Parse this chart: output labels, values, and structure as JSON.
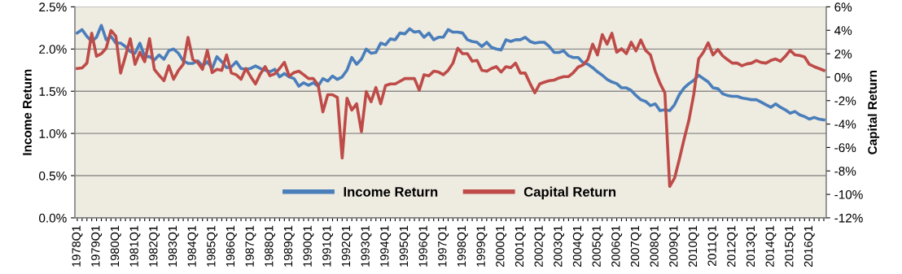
{
  "chart_data": {
    "type": "line",
    "ylabel": "Income Return",
    "y2label": "Capital Return",
    "categories": [
      "1978Q1",
      null,
      null,
      null,
      "1979Q1",
      null,
      null,
      null,
      "1980Q1",
      null,
      null,
      null,
      "1981Q1",
      null,
      null,
      null,
      "1982Q1",
      null,
      null,
      null,
      "1983Q1",
      null,
      null,
      null,
      "1984Q1",
      null,
      null,
      null,
      "1985Q1",
      null,
      null,
      null,
      "1986Q1",
      null,
      null,
      null,
      "1987Q1",
      null,
      null,
      null,
      "1988Q1",
      null,
      null,
      null,
      "1989Q1",
      null,
      null,
      null,
      "1990Q1",
      null,
      null,
      null,
      "1991Q1",
      null,
      null,
      null,
      "1992Q1",
      null,
      null,
      null,
      "1993Q1",
      null,
      null,
      null,
      "1994Q1",
      null,
      null,
      null,
      "1995Q1",
      null,
      null,
      null,
      "1996Q1",
      null,
      null,
      null,
      "1997Q1",
      null,
      null,
      null,
      "1998Q1",
      null,
      null,
      null,
      "1999Q1",
      null,
      null,
      null,
      "2000Q1",
      null,
      null,
      null,
      "2001Q1",
      null,
      null,
      null,
      "2002Q1",
      null,
      null,
      null,
      "2003Q1",
      null,
      null,
      null,
      "2004Q1",
      null,
      null,
      null,
      "2005Q1",
      null,
      null,
      null,
      "2006Q1",
      null,
      null,
      null,
      "2007Q1",
      null,
      null,
      null,
      "2008Q1",
      null,
      null,
      null,
      "2009Q1",
      null,
      null,
      null,
      "2010Q1",
      null,
      null,
      null,
      "2011Q1",
      null,
      null,
      null,
      "2012Q1",
      null,
      null,
      null,
      "2013Q1",
      null,
      null,
      null,
      "2014Q1",
      null,
      null,
      null,
      "2015Q1",
      null,
      null,
      null,
      "2016Q1",
      null,
      null,
      null
    ],
    "series": [
      {
        "name": "Income Return",
        "color": "#4a7ebb",
        "values": [
          2.19,
          2.23,
          2.15,
          2.09,
          2.14,
          2.28,
          2.11,
          2.15,
          2.07,
          2.07,
          2.03,
          1.97,
          1.95,
          2.07,
          1.91,
          1.91,
          1.87,
          1.93,
          1.88,
          1.98,
          2.0,
          1.95,
          1.86,
          1.83,
          1.83,
          1.86,
          1.8,
          1.85,
          1.77,
          1.91,
          1.85,
          1.78,
          1.79,
          1.85,
          1.77,
          1.76,
          1.77,
          1.8,
          1.77,
          1.75,
          1.73,
          1.76,
          1.67,
          1.71,
          1.67,
          1.65,
          1.56,
          1.6,
          1.57,
          1.6,
          1.56,
          1.65,
          1.62,
          1.68,
          1.64,
          1.67,
          1.75,
          1.9,
          1.82,
          1.88,
          2.0,
          1.95,
          1.96,
          2.07,
          2.05,
          2.12,
          2.11,
          2.19,
          2.18,
          2.24,
          2.2,
          2.21,
          2.14,
          2.19,
          2.11,
          2.14,
          2.14,
          2.23,
          2.2,
          2.2,
          2.19,
          2.11,
          2.09,
          2.08,
          2.03,
          2.08,
          2.02,
          2.0,
          1.99,
          2.11,
          2.09,
          2.11,
          2.11,
          2.14,
          2.09,
          2.07,
          2.08,
          2.08,
          2.03,
          1.96,
          1.96,
          1.98,
          1.92,
          1.9,
          1.9,
          1.84,
          1.82,
          1.78,
          1.73,
          1.69,
          1.64,
          1.61,
          1.59,
          1.54,
          1.54,
          1.51,
          1.45,
          1.4,
          1.38,
          1.33,
          1.35,
          1.27,
          1.28,
          1.27,
          1.34,
          1.46,
          1.54,
          1.59,
          1.63,
          1.69,
          1.65,
          1.61,
          1.54,
          1.53,
          1.47,
          1.45,
          1.44,
          1.44,
          1.42,
          1.41,
          1.4,
          1.4,
          1.37,
          1.34,
          1.31,
          1.35,
          1.31,
          1.28,
          1.24,
          1.26,
          1.22,
          1.2,
          1.17,
          1.19,
          1.17,
          1.16
        ]
      },
      {
        "name": "Capital Return",
        "color": "#be4b48",
        "axis": "y2",
        "values": [
          0.74,
          0.79,
          1.2,
          3.75,
          1.78,
          2.01,
          2.47,
          3.98,
          3.51,
          0.35,
          1.78,
          3.28,
          1.09,
          2.13,
          1.32,
          3.28,
          0.67,
          0.16,
          -0.3,
          0.97,
          -0.18,
          0.58,
          1.09,
          3.4,
          1.5,
          1.27,
          0.67,
          2.29,
          0.39,
          0.67,
          0.58,
          1.9,
          0.35,
          0.21,
          -0.18,
          0.74,
          0.05,
          -0.58,
          0.28,
          0.9,
          0.12,
          0.28,
          0.74,
          1.27,
          0.09,
          0.39,
          0.51,
          0.21,
          -0.12,
          -0.12,
          -0.65,
          -2.96,
          -1.5,
          -1.5,
          -1.73,
          -6.89,
          -1.8,
          -2.8,
          -2.27,
          -4.65,
          -1.23,
          -2.1,
          -0.88,
          -2.27,
          -0.72,
          -0.58,
          -0.58,
          -0.35,
          -0.12,
          -0.12,
          -0.12,
          -1.11,
          0.21,
          0.12,
          0.51,
          0.44,
          0.21,
          0.58,
          1.2,
          2.47,
          2.01,
          2.01,
          1.36,
          1.43,
          0.58,
          0.51,
          0.74,
          0.9,
          0.44,
          0.9,
          0.81,
          1.2,
          0.35,
          0.35,
          -0.53,
          -1.34,
          -0.58,
          -0.42,
          -0.3,
          -0.25,
          -0.07,
          0.05,
          0.05,
          0.39,
          0.86,
          1.04,
          1.5,
          2.82,
          1.9,
          3.63,
          2.82,
          3.75,
          2.13,
          2.43,
          2.01,
          2.98,
          2.24,
          3.17,
          2.29,
          1.9,
          0.51,
          -0.53,
          -1.34,
          -9.32,
          -8.62,
          -7.01,
          -5.27,
          -3.65,
          -1.46,
          1.55,
          2.13,
          2.94,
          1.9,
          2.36,
          1.83,
          1.5,
          1.2,
          1.2,
          0.97,
          1.13,
          1.2,
          1.43,
          1.25,
          1.2,
          1.43,
          1.55,
          1.36,
          1.78,
          2.29,
          1.9,
          1.85,
          1.73,
          1.09,
          0.9,
          0.74,
          0.58
        ]
      }
    ],
    "ylim": [
      0,
      2.5
    ],
    "yticks": [
      {
        "value": 0,
        "label": "0.0%"
      },
      {
        "value": 0.5,
        "label": "0.5%"
      },
      {
        "value": 1.0,
        "label": "1.0%"
      },
      {
        "value": 1.5,
        "label": "1.5%"
      },
      {
        "value": 2.0,
        "label": "2.0%"
      },
      {
        "value": 2.5,
        "label": "2.5%"
      }
    ],
    "y2lim": [
      -12,
      6
    ],
    "y2ticks": [
      {
        "value": -12,
        "label": "-12%"
      },
      {
        "value": -10,
        "label": "-10%"
      },
      {
        "value": -8,
        "label": "-8%"
      },
      {
        "value": -6,
        "label": "-6%"
      },
      {
        "value": -4,
        "label": "-4%"
      },
      {
        "value": -2,
        "label": "-2%"
      },
      {
        "value": 0,
        "label": "0%"
      },
      {
        "value": 2,
        "label": "2%"
      },
      {
        "value": 4,
        "label": "4%"
      },
      {
        "value": 6,
        "label": "6%"
      }
    ],
    "grid": "y",
    "legend": "bottom",
    "marker": "none",
    "line_style": "solid"
  }
}
